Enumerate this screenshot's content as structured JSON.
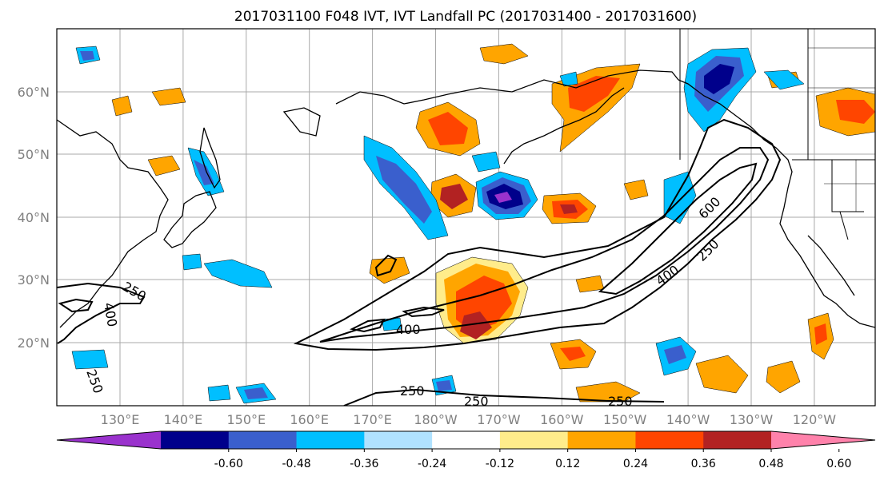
{
  "title": "2017031100 F048 IVT, IVT Landfall PC (2017031400 - 2017031600)",
  "lat_labels": [
    "60°N",
    "50°N",
    "40°N",
    "30°N",
    "20°N"
  ],
  "lon_labels": [
    "130°E",
    "140°E",
    "150°E",
    "160°E",
    "170°E",
    "180°W",
    "170°W",
    "160°W",
    "150°W",
    "140°W",
    "130°W",
    "120°W"
  ],
  "contour_labels": [
    "250",
    "400",
    "600",
    "250",
    "400",
    "250",
    "250",
    "250",
    "400",
    "250"
  ],
  "colorbar": {
    "colors": [
      "#9a32cd",
      "#00008b",
      "#3a5fcd",
      "#00bfff",
      "#b0e2ff",
      "#ffffff",
      "#ffec8b",
      "#ffa500",
      "#ff4500",
      "#b22222",
      "#ff82ab"
    ],
    "tick_labels": [
      "-0.60",
      "-0.48",
      "-0.36",
      "-0.24",
      "-0.12",
      "0.12",
      "0.24",
      "0.36",
      "0.48",
      "0.60"
    ]
  }
}
